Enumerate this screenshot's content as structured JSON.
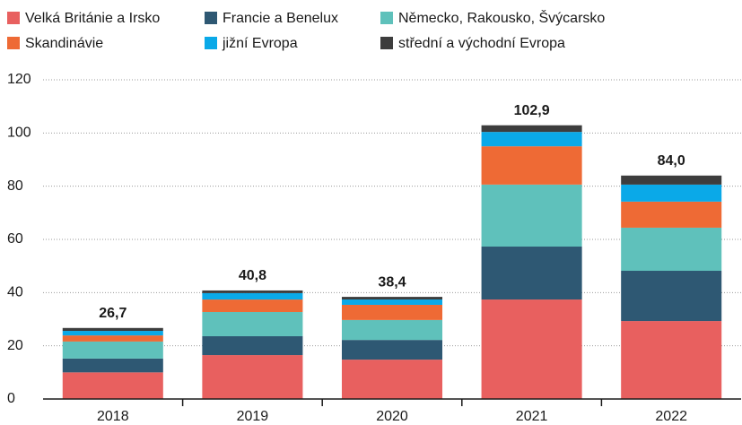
{
  "chart_data": {
    "type": "stacked_bar",
    "categories": [
      "2018",
      "2019",
      "2020",
      "2021",
      "2022"
    ],
    "series": [
      {
        "name": "Velká Británie a Irsko",
        "color": "#e8605f",
        "values": [
          10.0,
          16.5,
          14.8,
          37.4,
          29.3
        ]
      },
      {
        "name": "Francie a Benelux",
        "color": "#2e5873",
        "values": [
          5.2,
          7.1,
          7.4,
          19.9,
          18.9
        ]
      },
      {
        "name": "Německo, Rakousko, Švýcarsko",
        "color": "#5fc1bb",
        "values": [
          6.4,
          9.1,
          7.5,
          23.3,
          16.2
        ]
      },
      {
        "name": "Skandinávie",
        "color": "#ee6a35",
        "values": [
          2.3,
          4.7,
          5.7,
          14.4,
          9.8
        ]
      },
      {
        "name": "jižní Evropa",
        "color": "#0aa9e8",
        "values": [
          1.7,
          2.4,
          2.0,
          5.4,
          6.4
        ]
      },
      {
        "name": "střední a východní Evropa",
        "color": "#3d3d3d",
        "values": [
          1.1,
          1.0,
          1.0,
          2.5,
          3.4
        ]
      }
    ],
    "totals": [
      26.7,
      40.8,
      38.4,
      102.9,
      84.0
    ],
    "total_labels": [
      "26,7",
      "40,8",
      "38,4",
      "102,9",
      "84,0"
    ],
    "ylim": [
      0,
      120
    ],
    "yticks": [
      0,
      20,
      40,
      60,
      80,
      100,
      120
    ],
    "grid": true
  }
}
